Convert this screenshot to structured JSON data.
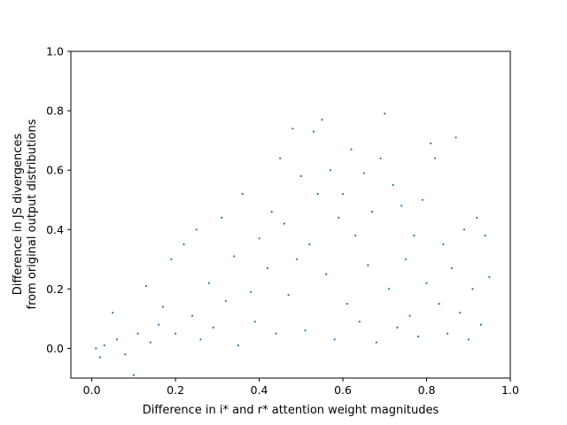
{
  "chart_data": {
    "type": "scatter",
    "title": "",
    "xlabel": "Difference in i* and r* attention weight magnitudes",
    "ylabel_lines": [
      "Difference in JS divergences",
      "from original output distributions"
    ],
    "xlim": [
      -0.05,
      1.0
    ],
    "ylim": [
      -0.1,
      1.0
    ],
    "xticks": [
      0.0,
      0.2,
      0.4,
      0.6,
      0.8,
      1.0
    ],
    "xtick_labels": [
      "0.0",
      "0.2",
      "0.4",
      "0.6",
      "0.8",
      "1.0"
    ],
    "yticks": [
      0.0,
      0.2,
      0.4,
      0.6,
      0.8,
      1.0
    ],
    "ytick_labels": [
      "0.0",
      "0.2",
      "0.4",
      "0.6",
      "0.8",
      "1.0"
    ],
    "grid": false,
    "legend": "none",
    "marker_color": "#1f77b4",
    "series": [
      {
        "points": [
          [
            0.01,
            0.0
          ],
          [
            0.02,
            -0.03
          ],
          [
            0.03,
            0.01
          ],
          [
            0.05,
            0.12
          ],
          [
            0.06,
            0.03
          ],
          [
            0.08,
            -0.02
          ],
          [
            0.1,
            -0.09
          ],
          [
            0.11,
            0.05
          ],
          [
            0.13,
            0.21
          ],
          [
            0.14,
            0.02
          ],
          [
            0.16,
            0.08
          ],
          [
            0.17,
            0.14
          ],
          [
            0.19,
            0.3
          ],
          [
            0.2,
            0.05
          ],
          [
            0.22,
            0.35
          ],
          [
            0.24,
            0.11
          ],
          [
            0.25,
            0.4
          ],
          [
            0.26,
            0.03
          ],
          [
            0.28,
            0.22
          ],
          [
            0.29,
            0.07
          ],
          [
            0.31,
            0.44
          ],
          [
            0.32,
            0.16
          ],
          [
            0.34,
            0.31
          ],
          [
            0.35,
            0.01
          ],
          [
            0.36,
            0.52
          ],
          [
            0.38,
            0.19
          ],
          [
            0.39,
            0.09
          ],
          [
            0.4,
            0.37
          ],
          [
            0.42,
            0.27
          ],
          [
            0.43,
            0.46
          ],
          [
            0.44,
            0.05
          ],
          [
            0.45,
            0.64
          ],
          [
            0.46,
            0.42
          ],
          [
            0.47,
            0.18
          ],
          [
            0.48,
            0.74
          ],
          [
            0.49,
            0.3
          ],
          [
            0.5,
            0.58
          ],
          [
            0.51,
            0.06
          ],
          [
            0.52,
            0.35
          ],
          [
            0.53,
            0.73
          ],
          [
            0.54,
            0.52
          ],
          [
            0.55,
            0.77
          ],
          [
            0.56,
            0.25
          ],
          [
            0.57,
            0.6
          ],
          [
            0.58,
            0.03
          ],
          [
            0.59,
            0.44
          ],
          [
            0.6,
            0.52
          ],
          [
            0.61,
            0.15
          ],
          [
            0.62,
            0.67
          ],
          [
            0.63,
            0.38
          ],
          [
            0.64,
            0.09
          ],
          [
            0.65,
            0.59
          ],
          [
            0.66,
            0.28
          ],
          [
            0.67,
            0.46
          ],
          [
            0.68,
            0.02
          ],
          [
            0.69,
            0.64
          ],
          [
            0.7,
            0.79
          ],
          [
            0.71,
            0.2
          ],
          [
            0.72,
            0.55
          ],
          [
            0.73,
            0.07
          ],
          [
            0.74,
            0.48
          ],
          [
            0.75,
            0.3
          ],
          [
            0.76,
            0.11
          ],
          [
            0.77,
            0.38
          ],
          [
            0.78,
            0.04
          ],
          [
            0.79,
            0.5
          ],
          [
            0.8,
            0.22
          ],
          [
            0.81,
            0.69
          ],
          [
            0.82,
            0.64
          ],
          [
            0.83,
            0.15
          ],
          [
            0.84,
            0.35
          ],
          [
            0.85,
            0.05
          ],
          [
            0.86,
            0.27
          ],
          [
            0.87,
            0.71
          ],
          [
            0.88,
            0.12
          ],
          [
            0.89,
            0.4
          ],
          [
            0.9,
            0.03
          ],
          [
            0.91,
            0.2
          ],
          [
            0.92,
            0.44
          ],
          [
            0.93,
            0.08
          ],
          [
            0.94,
            0.38
          ],
          [
            0.95,
            0.24
          ]
        ]
      }
    ]
  }
}
